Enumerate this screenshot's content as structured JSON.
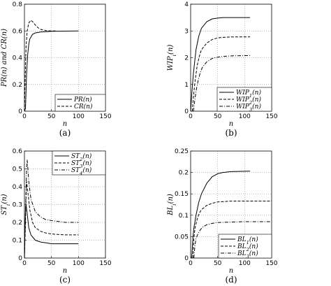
{
  "chart_data": [
    {
      "type": "line",
      "caption": "(a)",
      "xlabel": "n",
      "ylabel": "PR(n) and CR(n)",
      "xlim": [
        0,
        150
      ],
      "ylim": [
        0,
        0.8
      ],
      "xticks": [
        "0",
        "50",
        "100",
        "150"
      ],
      "yticks": [
        "0",
        "0.2",
        "0.4",
        "0.6",
        "0.8"
      ],
      "grid": true,
      "legend": "bottom-right",
      "series": [
        {
          "name": "PR(n)",
          "style": "solid",
          "x": [
            0,
            2,
            4,
            6,
            8,
            10,
            15,
            20,
            30,
            40,
            50,
            100
          ],
          "y": [
            0,
            0.02,
            0.28,
            0.42,
            0.5,
            0.54,
            0.575,
            0.585,
            0.592,
            0.595,
            0.597,
            0.6
          ]
        },
        {
          "name": "CR(n)",
          "style": "dashed",
          "x": [
            0,
            1,
            3,
            5,
            8,
            12,
            16,
            20,
            25,
            30,
            40,
            50,
            60
          ],
          "y": [
            0,
            0.2,
            0.48,
            0.6,
            0.66,
            0.68,
            0.665,
            0.645,
            0.625,
            0.612,
            0.603,
            0.6,
            0.6
          ]
        }
      ]
    },
    {
      "type": "line",
      "caption": "(b)",
      "xlabel": "n",
      "ylabel": "WIP_i(n)",
      "xlim": [
        0,
        150
      ],
      "ylim": [
        0,
        4
      ],
      "xticks": [
        "0",
        "50",
        "100",
        "150"
      ],
      "yticks": [
        "0",
        "1",
        "2",
        "3",
        "4"
      ],
      "grid": true,
      "legend": "bottom-right",
      "series": [
        {
          "name": "WIP_1(n)",
          "style": "solid",
          "x": [
            0,
            2,
            5,
            10,
            15,
            20,
            30,
            40,
            50,
            60,
            80,
            110
          ],
          "y": [
            0,
            0.6,
            1.4,
            2.3,
            2.8,
            3.1,
            3.35,
            3.45,
            3.48,
            3.5,
            3.5,
            3.5
          ]
        },
        {
          "name": "WIP_2(n)",
          "style": "dashed",
          "x": [
            3,
            5,
            8,
            12,
            16,
            20,
            30,
            40,
            50,
            60,
            80,
            110
          ],
          "y": [
            0,
            0.5,
            1.1,
            1.7,
            2.05,
            2.3,
            2.55,
            2.68,
            2.74,
            2.76,
            2.78,
            2.78
          ]
        },
        {
          "name": "WIP_3(n)",
          "style": "dashdot",
          "x": [
            5,
            7,
            10,
            14,
            18,
            22,
            30,
            40,
            50,
            60,
            80,
            110
          ],
          "y": [
            0,
            0.3,
            0.75,
            1.15,
            1.45,
            1.65,
            1.85,
            1.97,
            2.02,
            2.05,
            2.07,
            2.08
          ]
        }
      ]
    },
    {
      "type": "line",
      "caption": "(c)",
      "xlabel": "n",
      "ylabel": "ST_i(n)",
      "xlim": [
        0,
        150
      ],
      "ylim": [
        0,
        0.6
      ],
      "xticks": [
        "0",
        "50",
        "100",
        "150"
      ],
      "yticks": [
        "0",
        "0.1",
        "0.2",
        "0.3",
        "0.4",
        "0.5",
        "0.6"
      ],
      "grid": true,
      "legend": "top-right",
      "series": [
        {
          "name": "ST_2(n)",
          "style": "solid",
          "x": [
            0,
            1,
            2,
            3,
            5,
            8,
            12,
            20,
            30,
            40,
            50,
            75,
            100
          ],
          "y": [
            0,
            0.18,
            0.27,
            0.3,
            0.25,
            0.17,
            0.13,
            0.1,
            0.09,
            0.085,
            0.08,
            0.08,
            0.08
          ]
        },
        {
          "name": "ST_3(n)",
          "style": "dashed",
          "x": [
            0,
            2,
            3,
            4,
            6,
            10,
            15,
            20,
            30,
            40,
            50,
            75,
            100
          ],
          "y": [
            0,
            0.2,
            0.35,
            0.43,
            0.38,
            0.27,
            0.2,
            0.17,
            0.15,
            0.14,
            0.135,
            0.13,
            0.13
          ]
        },
        {
          "name": "ST_4(n)",
          "style": "dashdot",
          "x": [
            0,
            2,
            4,
            5,
            6,
            8,
            12,
            20,
            30,
            40,
            50,
            75,
            100
          ],
          "y": [
            0,
            0.25,
            0.5,
            0.55,
            0.52,
            0.43,
            0.33,
            0.26,
            0.23,
            0.215,
            0.21,
            0.2,
            0.2
          ]
        }
      ]
    },
    {
      "type": "line",
      "caption": "(d)",
      "xlabel": "n",
      "ylabel": "BL_i(n)",
      "xlim": [
        0,
        150
      ],
      "ylim": [
        0,
        0.25
      ],
      "xticks": [
        "0",
        "50",
        "100",
        "150"
      ],
      "yticks": [
        "0",
        "0.05",
        "0.1",
        "0.15",
        "0.2",
        "0.25"
      ],
      "grid": true,
      "legend": "bottom-right",
      "series": [
        {
          "name": "BL_1(n)",
          "style": "solid",
          "x": [
            2,
            4,
            6,
            8,
            10,
            15,
            20,
            30,
            40,
            50,
            60,
            75,
            110
          ],
          "y": [
            0,
            0.045,
            0.07,
            0.085,
            0.1,
            0.13,
            0.15,
            0.175,
            0.19,
            0.197,
            0.2,
            0.202,
            0.203
          ]
        },
        {
          "name": "BL_2(n)",
          "style": "dashed",
          "x": [
            4,
            6,
            8,
            12,
            16,
            20,
            30,
            40,
            50,
            75,
            100,
            150
          ],
          "y": [
            0,
            0.045,
            0.07,
            0.09,
            0.105,
            0.113,
            0.123,
            0.128,
            0.131,
            0.133,
            0.133,
            0.133
          ]
        },
        {
          "name": "BL_3(n)",
          "style": "dashdot",
          "x": [
            6,
            8,
            10,
            14,
            18,
            22,
            30,
            40,
            50,
            75,
            100,
            150
          ],
          "y": [
            0,
            0.03,
            0.045,
            0.058,
            0.066,
            0.072,
            0.078,
            0.081,
            0.083,
            0.084,
            0.085,
            0.085
          ]
        }
      ]
    }
  ]
}
